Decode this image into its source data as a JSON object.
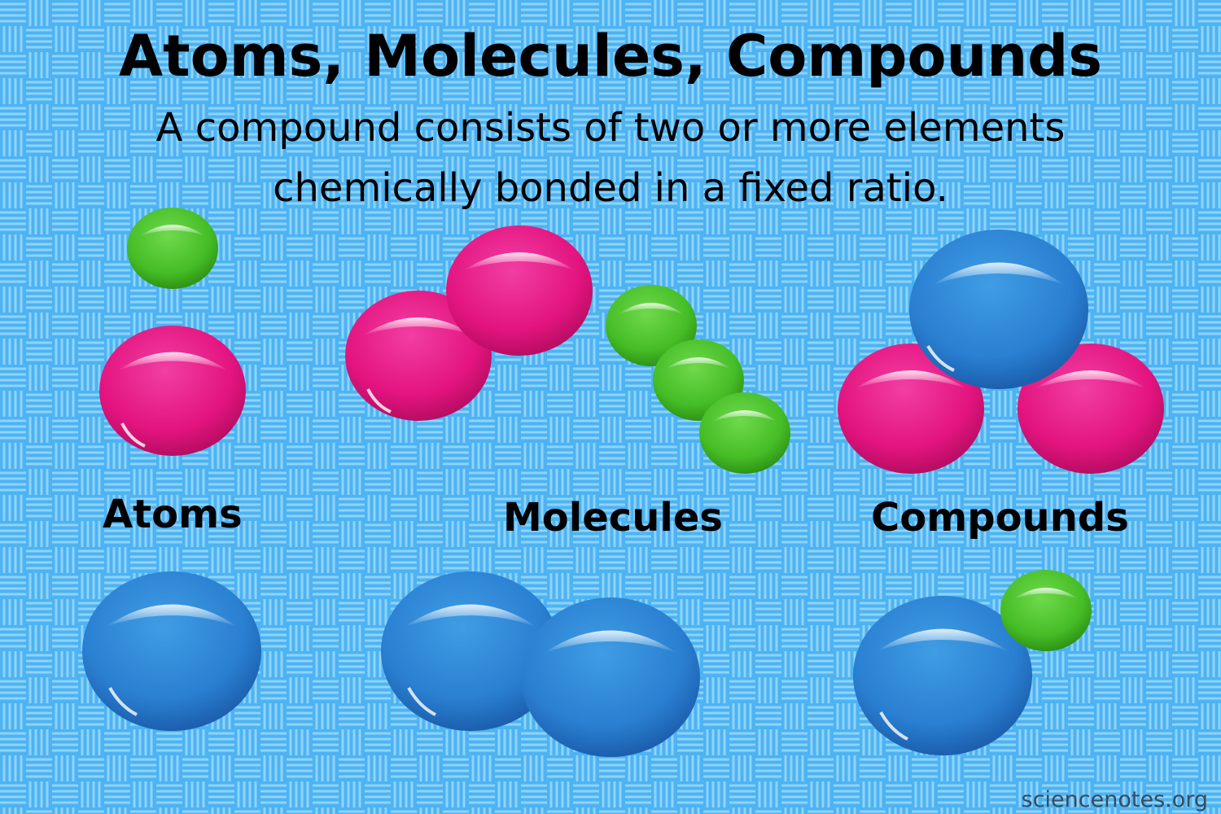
{
  "title": "Atoms, Molecules, Compounds",
  "subtitle_line1": "A compound consists of two or more elements",
  "subtitle_line2": "chemically bonded in a fixed ratio.",
  "labels": {
    "atoms": "Atoms",
    "molecules": "Molecules",
    "compounds": "Compounds"
  },
  "credit": "sciencenotes.org",
  "colors": {
    "background": "#4db3f2",
    "pattern_line": "#8fd3fb",
    "pink": "#e8178a",
    "green": "#4ec72f",
    "blue": "#2f86d6"
  }
}
